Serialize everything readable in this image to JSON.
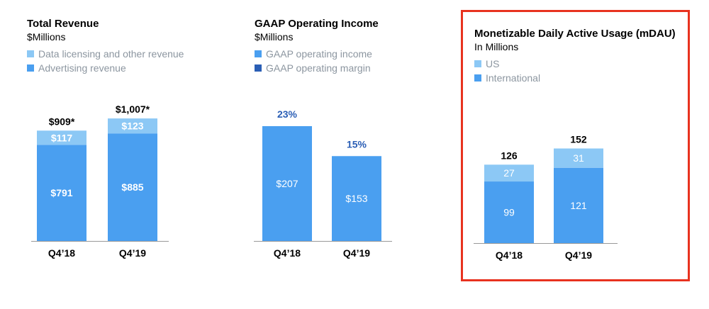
{
  "colors": {
    "advertising": "#4a9ff0",
    "data_licensing": "#8cc8f5",
    "gaap_income": "#4a9ff0",
    "gaap_margin": "#2a5eb5",
    "us": "#8cc8f5",
    "international": "#4a9ff0",
    "highlight_border": "#e8321f"
  },
  "chart_data": [
    {
      "type": "bar",
      "stacked": true,
      "title": "Total Revenue",
      "subtitle": "$Millions",
      "categories": [
        "Q4’18",
        "Q4’19"
      ],
      "series": [
        {
          "name": "Advertising revenue",
          "values": [
            791,
            885
          ],
          "labels": [
            "$791",
            "$885"
          ],
          "color": "#4a9ff0"
        },
        {
          "name": "Data licensing and other revenue",
          "values": [
            117,
            123
          ],
          "labels": [
            "$117",
            "$123"
          ],
          "color": "#8cc8f5"
        }
      ],
      "totals": [
        909,
        1007
      ],
      "total_labels": [
        "$909*",
        "$1,007*"
      ],
      "legend": [
        "Data licensing and other revenue",
        "Advertising revenue"
      ],
      "legend_colors": [
        "#8cc8f5",
        "#4a9ff0"
      ],
      "legend_position": "top-left"
    },
    {
      "type": "bar",
      "title": "GAAP Operating Income",
      "subtitle": "$Millions",
      "categories": [
        "Q4’18",
        "Q4’19"
      ],
      "series": [
        {
          "name": "GAAP operating income",
          "values": [
            207,
            153
          ],
          "labels": [
            "$207",
            "$153"
          ],
          "color": "#4a9ff0"
        }
      ],
      "margin_labels": [
        "23%",
        "15%"
      ],
      "legend": [
        "GAAP operating income",
        "GAAP operating margin"
      ],
      "legend_colors": [
        "#4a9ff0",
        "#2a5eb5"
      ],
      "legend_position": "top-left"
    },
    {
      "type": "bar",
      "stacked": true,
      "title": "Monetizable Daily Active Usage (mDAU)",
      "subtitle": "In Millions",
      "categories": [
        "Q4’18",
        "Q4’19"
      ],
      "series": [
        {
          "name": "International",
          "values": [
            99,
            121
          ],
          "labels": [
            "99",
            "121"
          ],
          "color": "#4a9ff0"
        },
        {
          "name": "US",
          "values": [
            27,
            31
          ],
          "labels": [
            "27",
            "31"
          ],
          "color": "#8cc8f5"
        }
      ],
      "totals": [
        126,
        152
      ],
      "total_labels": [
        "126",
        "152"
      ],
      "legend": [
        "US",
        "International"
      ],
      "legend_colors": [
        "#8cc8f5",
        "#4a9ff0"
      ],
      "legend_position": "top-left",
      "highlighted": true
    }
  ]
}
